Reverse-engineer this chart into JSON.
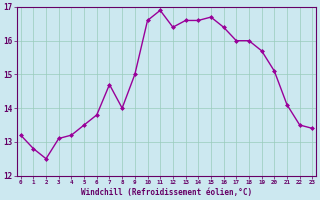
{
  "x": [
    0,
    1,
    2,
    3,
    4,
    5,
    6,
    7,
    8,
    9,
    10,
    11,
    12,
    13,
    14,
    15,
    16,
    17,
    18,
    19,
    20,
    21,
    22,
    23
  ],
  "y": [
    13.2,
    12.8,
    12.5,
    13.1,
    13.2,
    13.5,
    13.8,
    14.7,
    14.0,
    15.0,
    16.6,
    16.9,
    16.4,
    16.6,
    16.6,
    16.7,
    16.4,
    16.0,
    16.0,
    15.7,
    15.1,
    14.1,
    13.5,
    13.4
  ],
  "ylim": [
    12,
    17
  ],
  "yticks": [
    12,
    13,
    14,
    15,
    16,
    17
  ],
  "ytick_labels": [
    "12",
    "13",
    "14",
    "15",
    "16",
    "17"
  ],
  "xticks": [
    0,
    1,
    2,
    3,
    4,
    5,
    6,
    7,
    8,
    9,
    10,
    11,
    12,
    13,
    14,
    15,
    16,
    17,
    18,
    19,
    20,
    21,
    22,
    23
  ],
  "xtick_labels": [
    "0",
    "1",
    "2",
    "3",
    "4",
    "5",
    "6",
    "7",
    "8",
    "9",
    "10",
    "11",
    "12",
    "13",
    "14",
    "15",
    "16",
    "17",
    "18",
    "19",
    "20",
    "21",
    "22",
    "23"
  ],
  "xlabel": "Windchill (Refroidissement éolien,°C)",
  "line_color": "#990099",
  "marker": "D",
  "marker_size": 2.0,
  "bg_color": "#cce8f0",
  "grid_color": "#99ccbb",
  "spine_color": "#660066",
  "tick_label_color": "#660066",
  "xlabel_color": "#660066",
  "line_width": 1.0,
  "xlim_left": -0.3,
  "xlim_right": 23.3
}
